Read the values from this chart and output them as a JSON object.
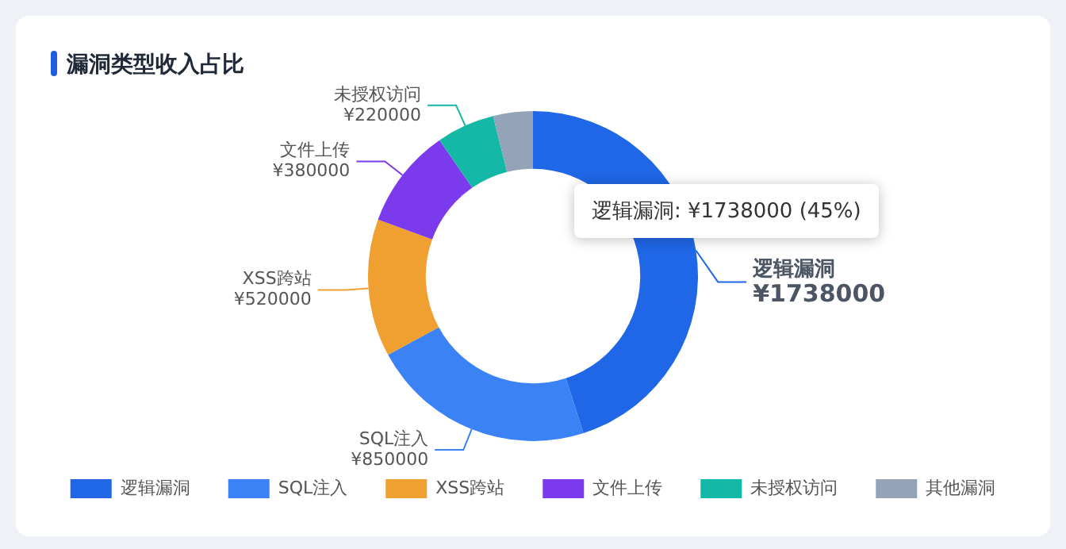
{
  "chart_data": {
    "type": "donut",
    "title": "漏洞类型收入占比",
    "categories": [
      "逻辑漏洞",
      "SQL注入",
      "XSS跨站",
      "文件上传",
      "未授权访问",
      "其他漏洞"
    ],
    "values": [
      1738000,
      850000,
      520000,
      380000,
      220000,
      150000
    ],
    "value_labels": [
      "¥1738000",
      "¥850000",
      "¥520000",
      "¥380000",
      "¥220000",
      null
    ],
    "colors": [
      "#1f67e6",
      "#3b82f6",
      "#f0a030",
      "#7c3aed",
      "#14b8a6",
      "#94a3b8"
    ],
    "legend": "bottom",
    "annotations": [
      "逻辑漏洞: ¥1738000 (45%)"
    ]
  }
}
